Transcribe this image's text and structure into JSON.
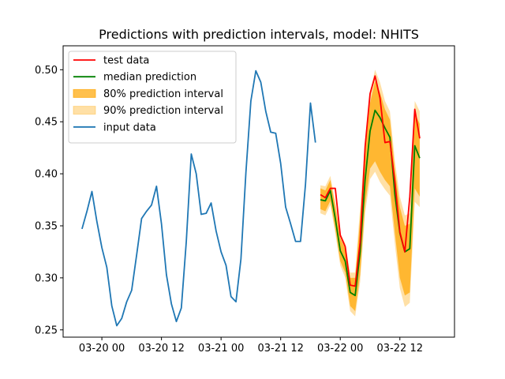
{
  "chart_data": {
    "type": "line",
    "title": "Predictions with prediction intervals, model: NHITS",
    "xlabel": "",
    "ylabel": "",
    "x_unit": "hours",
    "x_start": "2024-03-19 20:00",
    "x_step_hours": 2,
    "xlim": [
      -3.8,
      75
    ],
    "ylim": [
      0.243,
      0.523
    ],
    "x_ticks": [
      {
        "x": 4,
        "label": "03-20 00"
      },
      {
        "x": 16,
        "label": "03-20 12"
      },
      {
        "x": 28,
        "label": "03-21 00"
      },
      {
        "x": 40,
        "label": "03-21 12"
      },
      {
        "x": 52,
        "label": "03-22 00"
      },
      {
        "x": 64,
        "label": "03-22 12"
      }
    ],
    "y_ticks": [
      {
        "y": 0.25,
        "label": "0.25"
      },
      {
        "y": 0.3,
        "label": "0.30"
      },
      {
        "y": 0.35,
        "label": "0.35"
      },
      {
        "y": 0.4,
        "label": "0.40"
      },
      {
        "y": 0.45,
        "label": "0.45"
      },
      {
        "y": 0.5,
        "label": "0.50"
      }
    ],
    "grid": false,
    "legend_position": "top-left",
    "legend": [
      {
        "name": "test data",
        "kind": "line",
        "color": "#ff0000"
      },
      {
        "name": "median prediction",
        "kind": "line",
        "color": "#008000"
      },
      {
        "name": "80% prediction interval",
        "kind": "band",
        "color": "#ffa500",
        "opacity": 0.7
      },
      {
        "name": "90% prediction interval",
        "kind": "band",
        "color": "#ffa500",
        "opacity": 0.35
      },
      {
        "name": "input data",
        "kind": "line",
        "color": "#1f77b4"
      }
    ],
    "series": [
      {
        "name": "input data",
        "color": "#1f77b4",
        "x": [
          0,
          1,
          2,
          3,
          4,
          5,
          6,
          7,
          8,
          9,
          10,
          11,
          12,
          13,
          14,
          15,
          16,
          17,
          18,
          19,
          20,
          21,
          22,
          23,
          24,
          25,
          26,
          27,
          28,
          29,
          30,
          31,
          32,
          33,
          34,
          35,
          36,
          37,
          38,
          39,
          40,
          41,
          42,
          43,
          44,
          45,
          46,
          47
        ],
        "y": [
          0.347,
          0.364,
          0.383,
          0.354,
          0.329,
          0.31,
          0.273,
          0.254,
          0.261,
          0.277,
          0.288,
          0.322,
          0.357,
          0.364,
          0.37,
          0.388,
          0.352,
          0.303,
          0.275,
          0.258,
          0.271,
          0.335,
          0.419,
          0.4,
          0.361,
          0.362,
          0.372,
          0.345,
          0.325,
          0.312,
          0.282,
          0.277,
          0.318,
          0.401,
          0.47,
          0.499,
          0.488,
          0.46,
          0.44,
          0.439,
          0.41,
          0.368,
          0.352,
          0.335,
          0.335,
          0.39,
          0.468,
          0.43
        ]
      },
      {
        "name": "test data",
        "color": "#ff0000",
        "x": [
          48,
          49,
          50,
          51,
          52,
          53,
          54,
          55,
          56,
          57,
          58,
          59,
          60,
          61,
          62,
          63,
          64,
          65,
          66,
          67,
          68
        ],
        "y": [
          0.38,
          0.377,
          0.386,
          0.386,
          0.341,
          0.33,
          0.293,
          0.292,
          0.334,
          0.426,
          0.477,
          0.494,
          0.473,
          0.43,
          0.431,
          0.392,
          0.344,
          0.325,
          0.378,
          0.462,
          0.434
        ]
      },
      {
        "name": "median prediction",
        "color": "#008000",
        "x": [
          48,
          49,
          50,
          51,
          52,
          53,
          54,
          55,
          56,
          57,
          58,
          59,
          60,
          61,
          62,
          63,
          64,
          65,
          66,
          67,
          68
        ],
        "y": [
          0.375,
          0.374,
          0.384,
          0.357,
          0.326,
          0.316,
          0.286,
          0.283,
          0.325,
          0.394,
          0.441,
          0.461,
          0.454,
          0.444,
          0.435,
          0.38,
          0.343,
          0.325,
          0.328,
          0.427,
          0.415
        ]
      }
    ],
    "bands": [
      {
        "name": "90% prediction interval",
        "x": [
          48,
          49,
          50,
          51,
          52,
          53,
          54,
          55,
          56,
          57,
          58,
          59,
          60,
          61,
          62,
          63,
          64,
          65,
          66,
          67,
          68
        ],
        "lower": [
          0.362,
          0.36,
          0.37,
          0.343,
          0.312,
          0.3,
          0.268,
          0.263,
          0.296,
          0.362,
          0.395,
          0.402,
          0.392,
          0.385,
          0.379,
          0.332,
          0.29,
          0.272,
          0.276,
          0.373,
          0.368
        ],
        "upper": [
          0.389,
          0.388,
          0.398,
          0.373,
          0.343,
          0.333,
          0.305,
          0.305,
          0.368,
          0.432,
          0.478,
          0.5,
          0.488,
          0.47,
          0.46,
          0.412,
          0.378,
          0.36,
          0.362,
          0.47,
          0.46
        ]
      },
      {
        "name": "80% prediction interval",
        "x": [
          48,
          49,
          50,
          51,
          52,
          53,
          54,
          55,
          56,
          57,
          58,
          59,
          60,
          61,
          62,
          63,
          64,
          65,
          66,
          67,
          68
        ],
        "lower": [
          0.366,
          0.364,
          0.374,
          0.347,
          0.316,
          0.305,
          0.273,
          0.268,
          0.303,
          0.37,
          0.405,
          0.412,
          0.402,
          0.394,
          0.388,
          0.343,
          0.3,
          0.283,
          0.286,
          0.386,
          0.378
        ],
        "upper": [
          0.386,
          0.384,
          0.394,
          0.369,
          0.338,
          0.328,
          0.3,
          0.3,
          0.357,
          0.423,
          0.468,
          0.489,
          0.478,
          0.462,
          0.452,
          0.404,
          0.368,
          0.35,
          0.352,
          0.458,
          0.448
        ]
      }
    ]
  }
}
